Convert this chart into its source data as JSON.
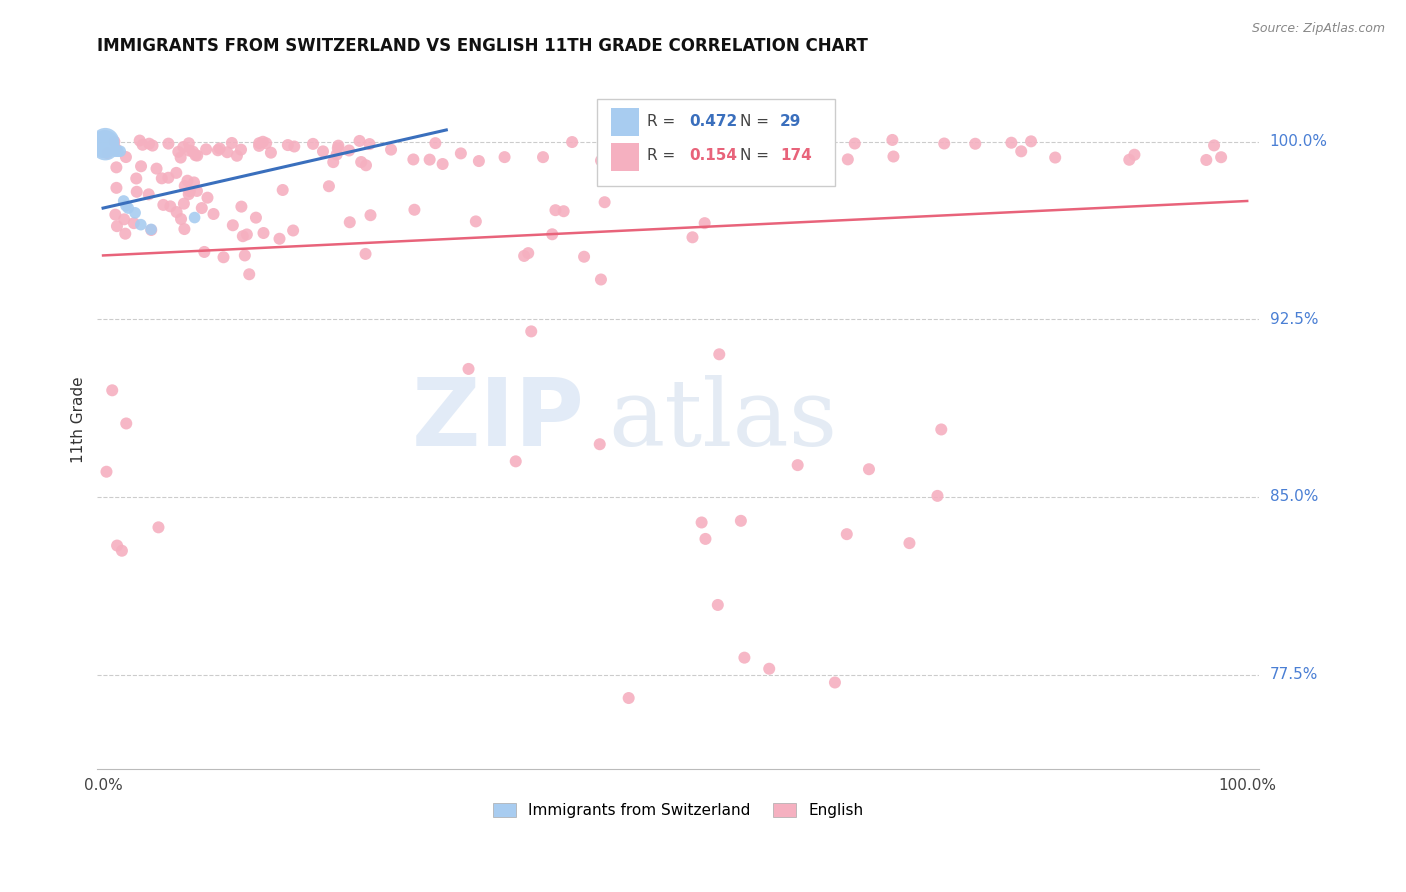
{
  "title": "IMMIGRANTS FROM SWITZERLAND VS ENGLISH 11TH GRADE CORRELATION CHART",
  "source": "Source: ZipAtlas.com",
  "ylabel": "11th Grade",
  "ytick_labels": [
    "100.0%",
    "92.5%",
    "85.0%",
    "77.5%"
  ],
  "ytick_values": [
    1.0,
    0.925,
    0.85,
    0.775
  ],
  "blue_color": "#a8ccf0",
  "pink_color": "#f5b0c0",
  "blue_line_color": "#3a6fbd",
  "pink_line_color": "#e8637a",
  "watermark_zip": "ZIP",
  "watermark_atlas": "atlas",
  "ymin": 0.735,
  "ymax": 1.03,
  "xmin": -0.005,
  "xmax": 1.01,
  "blue_line_x": [
    0.0,
    0.3
  ],
  "blue_line_y": [
    0.972,
    1.005
  ],
  "pink_line_x": [
    0.0,
    1.0
  ],
  "pink_line_y": [
    0.952,
    0.975
  ]
}
